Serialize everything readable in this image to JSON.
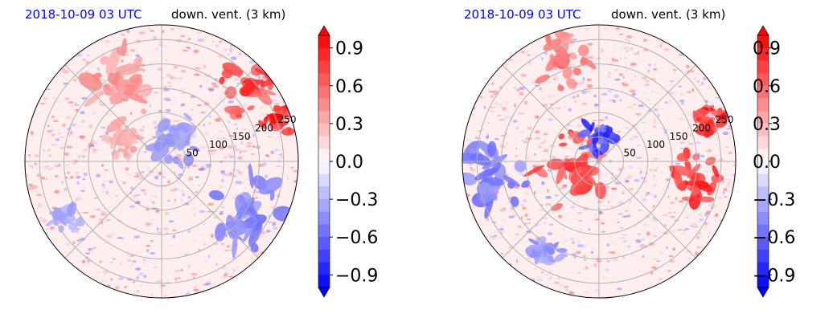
{
  "chart_data": [
    {
      "type": "heatmap",
      "projection": "polar",
      "title_left": "2018-10-09 03 UTC",
      "title_right": "down. vent. (3 km)",
      "radial_ticks": [
        "50",
        "100",
        "150",
        "200",
        "250"
      ],
      "radial_ticks_values": [
        50,
        100,
        150,
        200,
        250
      ],
      "colorbar": {
        "ticks": [
          "0.9",
          "0.6",
          "0.3",
          "0.0",
          "−0.3",
          "−0.6",
          "−0.9"
        ],
        "range": [
          -1.0,
          1.0
        ],
        "extend": "both",
        "colormap": "bwr"
      },
      "features": [
        {
          "r": 250,
          "theta": 20,
          "value": 1.0
        },
        {
          "r": 230,
          "theta": 40,
          "value": 0.9
        },
        {
          "r": 180,
          "theta": 120,
          "value": 0.5
        },
        {
          "r": 90,
          "theta": 150,
          "value": 0.4
        },
        {
          "r": 60,
          "theta": 60,
          "value": -0.5
        },
        {
          "r": 200,
          "theta": -30,
          "value": -0.6
        },
        {
          "r": 230,
          "theta": 210,
          "value": -0.4
        }
      ]
    },
    {
      "type": "heatmap",
      "projection": "polar",
      "title_left": "2018-10-09 03 UTC",
      "title_right": "down. vent. (3 km)",
      "radial_ticks": [
        "50",
        "100",
        "150",
        "200",
        "250"
      ],
      "radial_ticks_values": [
        50,
        100,
        150,
        200,
        250
      ],
      "colorbar": {
        "ticks": [
          "0.9",
          "0.6",
          "0.3",
          "0.0",
          "−0.3",
          "−0.6",
          "−0.9"
        ],
        "range": [
          -1.0,
          1.0
        ],
        "extend": "both",
        "colormap": "bwr"
      },
      "features": [
        {
          "r": 240,
          "theta": 20,
          "value": 1.0
        },
        {
          "r": 200,
          "theta": -10,
          "value": 0.95
        },
        {
          "r": 60,
          "theta": 200,
          "value": 0.9
        },
        {
          "r": 50,
          "theta": 90,
          "value": -0.9
        },
        {
          "r": 220,
          "theta": 110,
          "value": 0.6
        },
        {
          "r": 230,
          "theta": 190,
          "value": -0.6
        },
        {
          "r": 210,
          "theta": 240,
          "value": -0.5
        }
      ]
    }
  ]
}
